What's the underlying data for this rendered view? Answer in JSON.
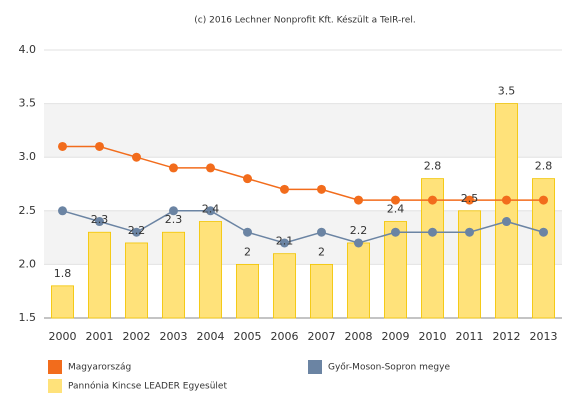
{
  "chart_data": {
    "type": "bar",
    "title": "(c) 2016 Lechner Nonprofit Kft. Készült a TeIR-rel.",
    "categories": [
      "2000",
      "2001",
      "2002",
      "2003",
      "2004",
      "2005",
      "2006",
      "2007",
      "2008",
      "2009",
      "2010",
      "2011",
      "2012",
      "2013"
    ],
    "series": [
      {
        "name": "Magyarország",
        "type": "line",
        "color": "#f26c1c",
        "values": [
          3.1,
          3.1,
          3.0,
          2.9,
          2.9,
          2.8,
          2.7,
          2.7,
          2.6,
          2.6,
          2.6,
          2.6,
          2.6,
          2.6
        ]
      },
      {
        "name": "Győr-Moson-Sopron megye",
        "type": "line",
        "color": "#6b84a3",
        "values": [
          2.5,
          2.4,
          2.3,
          2.5,
          2.5,
          2.3,
          2.2,
          2.3,
          2.2,
          2.3,
          2.3,
          2.3,
          2.4,
          2.3
        ]
      },
      {
        "name": "Pannónia Kincse LEADER Egyesület",
        "type": "bar",
        "color": "#ffe27a",
        "values": [
          1.8,
          2.3,
          2.2,
          2.3,
          2.4,
          2,
          2.1,
          2,
          2.2,
          2.4,
          2.8,
          2.5,
          3.5,
          2.8
        ]
      }
    ],
    "ylim": [
      1.5,
      4.0
    ],
    "yticks": [
      1.5,
      {
        "value": 2,
        "label": "2.0"
      },
      2.5,
      {
        "value": 3,
        "label": "3.0"
      },
      3.5,
      {
        "value": 4,
        "label": "4.0"
      }
    ],
    "grid": true
  }
}
